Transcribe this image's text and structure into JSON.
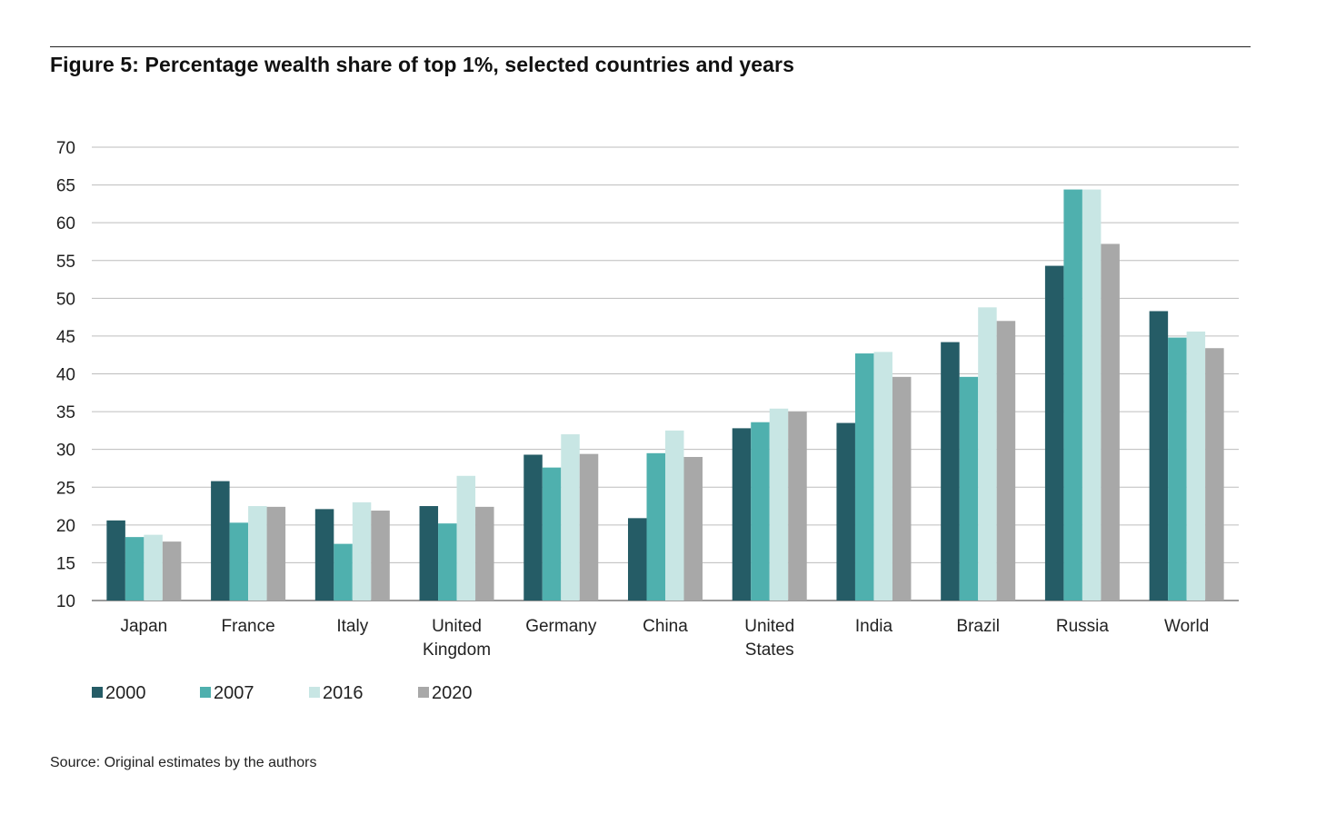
{
  "figure": {
    "title": "Figure 5: Percentage wealth share of top 1%, selected countries and years",
    "source": "Source: Original estimates by the authors"
  },
  "chart_data": {
    "type": "bar",
    "title": "Figure 5: Percentage wealth share of top 1%, selected countries and years",
    "xlabel": "",
    "ylabel": "",
    "ylim": [
      10,
      70
    ],
    "yticks": [
      10,
      15,
      20,
      25,
      30,
      35,
      40,
      45,
      50,
      55,
      60,
      65,
      70
    ],
    "grid": true,
    "legend_position": "bottom-left",
    "categories": [
      "Japan",
      "France",
      "Italy",
      "United Kingdom",
      "Germany",
      "China",
      "United States",
      "India",
      "Brazil",
      "Russia",
      "World"
    ],
    "category_lines": [
      [
        "Japan"
      ],
      [
        "France"
      ],
      [
        "Italy"
      ],
      [
        "United",
        "Kingdom"
      ],
      [
        "Germany"
      ],
      [
        "China"
      ],
      [
        "United",
        "States"
      ],
      [
        "India"
      ],
      [
        "Brazil"
      ],
      [
        "Russia"
      ],
      [
        "World"
      ]
    ],
    "series": [
      {
        "name": "2000",
        "color": "#255c66",
        "values": [
          20.6,
          25.8,
          22.1,
          22.5,
          29.3,
          20.9,
          32.8,
          33.5,
          44.2,
          54.3,
          48.3
        ]
      },
      {
        "name": "2007",
        "color": "#4fb0ae",
        "values": [
          18.4,
          20.3,
          17.5,
          20.2,
          27.6,
          29.5,
          33.6,
          42.7,
          39.6,
          64.4,
          44.8
        ]
      },
      {
        "name": "2016",
        "color": "#c8e6e4",
        "values": [
          18.7,
          22.5,
          23.0,
          26.5,
          32.0,
          32.5,
          35.4,
          42.9,
          48.8,
          64.4,
          45.6
        ]
      },
      {
        "name": "2020",
        "color": "#a8a8a8",
        "values": [
          17.8,
          22.4,
          21.9,
          22.4,
          29.4,
          29.0,
          35.0,
          39.6,
          47.0,
          57.2,
          43.4
        ]
      }
    ]
  }
}
